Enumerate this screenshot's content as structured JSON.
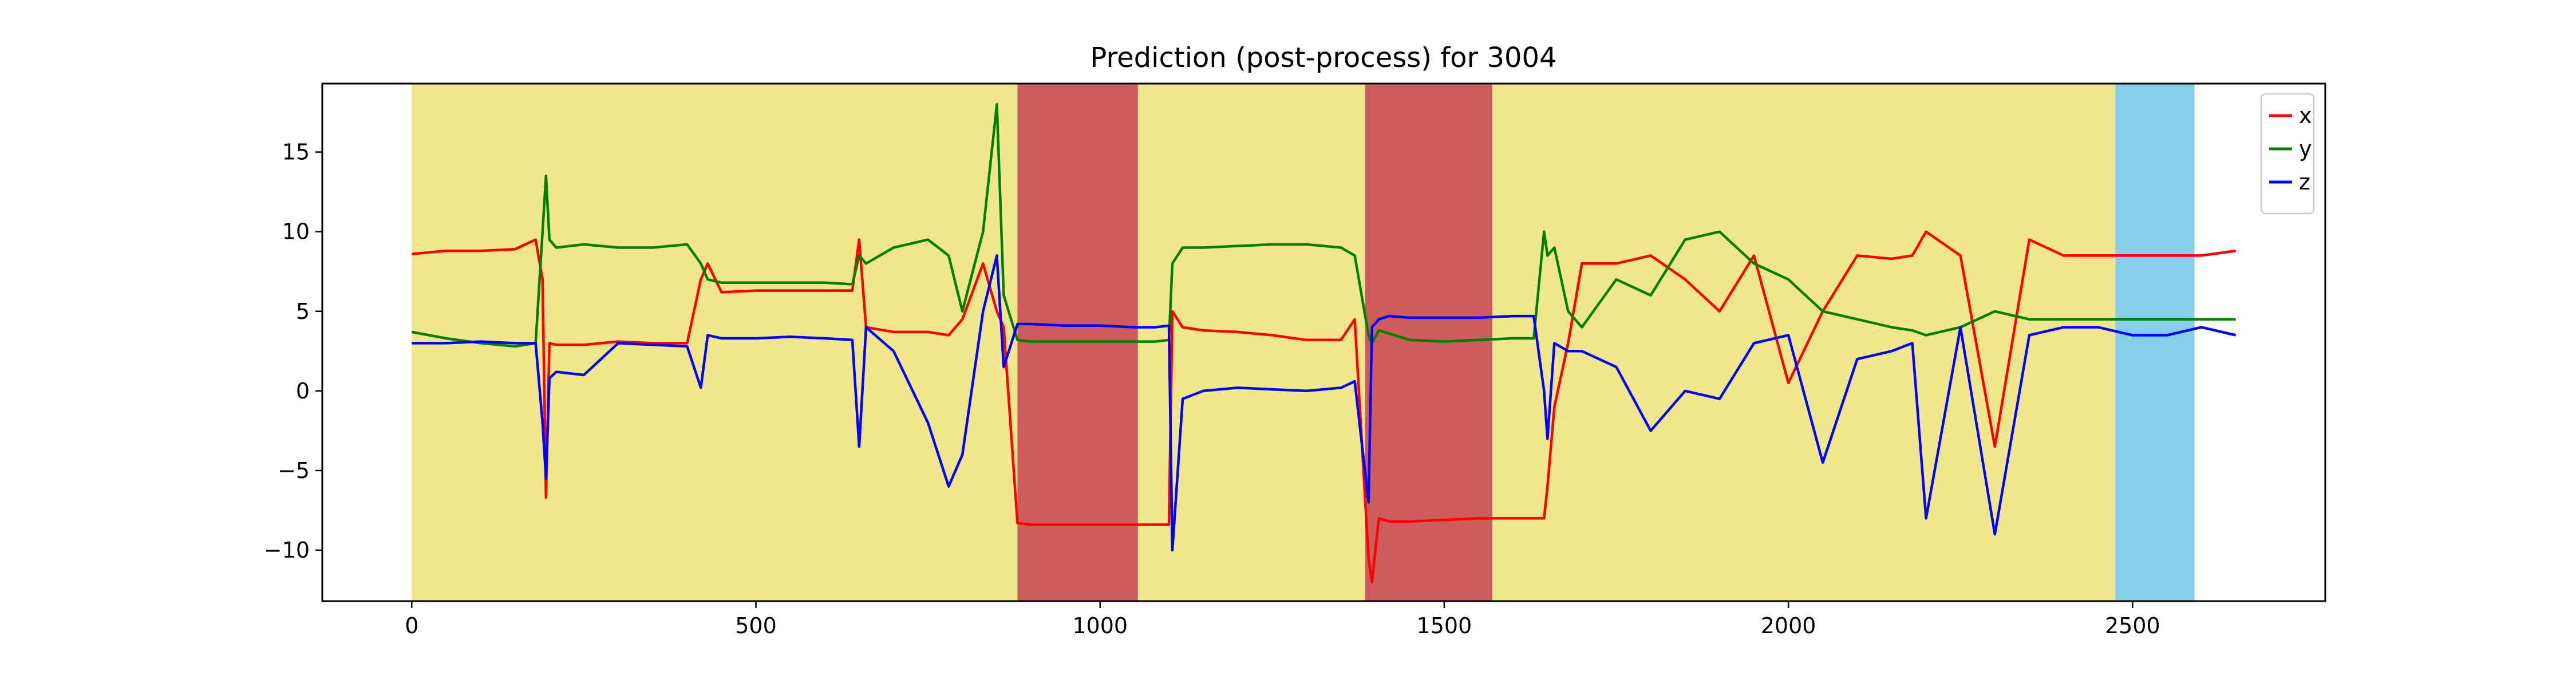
{
  "chart_data": {
    "type": "line",
    "title": "Prediction (post-process) for 3004",
    "xlabel": "",
    "ylabel": "",
    "xlim": [
      -130,
      2780
    ],
    "ylim": [
      -13.2,
      19.3
    ],
    "x_ticks": [
      0,
      500,
      1000,
      1500,
      2000,
      2500
    ],
    "y_ticks": [
      -10,
      -5,
      0,
      5,
      10,
      15
    ],
    "grid": false,
    "legend_position": "top-right",
    "background_bands": [
      {
        "x0": 0,
        "x1": 880,
        "color": "#f0e68c"
      },
      {
        "x0": 880,
        "x1": 1055,
        "color": "#cd5c5c"
      },
      {
        "x0": 1055,
        "x1": 1385,
        "color": "#f0e68c"
      },
      {
        "x0": 1385,
        "x1": 1570,
        "color": "#cd5c5c"
      },
      {
        "x0": 1570,
        "x1": 2475,
        "color": "#f0e68c"
      },
      {
        "x0": 2475,
        "x1": 2590,
        "color": "#87ceeb"
      }
    ],
    "x": [
      0,
      50,
      100,
      150,
      180,
      190,
      195,
      200,
      210,
      250,
      300,
      350,
      400,
      420,
      430,
      450,
      500,
      550,
      600,
      640,
      650,
      660,
      700,
      750,
      780,
      800,
      830,
      850,
      860,
      880,
      900,
      950,
      1000,
      1050,
      1080,
      1100,
      1105,
      1120,
      1150,
      1200,
      1250,
      1300,
      1350,
      1370,
      1390,
      1395,
      1405,
      1420,
      1450,
      1500,
      1550,
      1600,
      1630,
      1645,
      1650,
      1660,
      1680,
      1700,
      1750,
      1800,
      1850,
      1900,
      1950,
      2000,
      2050,
      2100,
      2150,
      2180,
      2200,
      2250,
      2300,
      2350,
      2400,
      2450,
      2500,
      2550,
      2600,
      2650
    ],
    "series": [
      {
        "name": "x",
        "color": "#ff0000",
        "values": [
          8.6,
          8.8,
          8.8,
          8.9,
          9.5,
          7.0,
          -6.7,
          3.0,
          2.9,
          2.9,
          3.1,
          3.0,
          3.0,
          7.0,
          8.0,
          6.2,
          6.3,
          6.3,
          6.3,
          6.3,
          9.5,
          4.0,
          3.7,
          3.7,
          3.5,
          4.5,
          8.0,
          5.0,
          4.0,
          -8.3,
          -8.4,
          -8.4,
          -8.4,
          -8.4,
          -8.4,
          -8.4,
          5.0,
          4.0,
          3.8,
          3.7,
          3.5,
          3.2,
          3.2,
          4.5,
          -10.5,
          -12.0,
          -8.0,
          -8.2,
          -8.2,
          -8.1,
          -8.0,
          -8.0,
          -8.0,
          -8.0,
          -6.0,
          -1.0,
          3.0,
          8.0,
          8.0,
          8.5,
          7.0,
          5.0,
          8.5,
          0.5,
          5.0,
          8.5,
          8.3,
          8.5,
          10.0,
          8.5,
          -3.5,
          9.5,
          8.5,
          8.5,
          8.5,
          8.5,
          8.5,
          8.8
        ]
      },
      {
        "name": "y",
        "color": "#008000",
        "values": [
          3.7,
          3.3,
          3.0,
          2.8,
          3.0,
          10.0,
          13.5,
          9.5,
          9.0,
          9.2,
          9.0,
          9.0,
          9.2,
          8.0,
          7.0,
          6.8,
          6.8,
          6.8,
          6.8,
          6.7,
          8.5,
          8.0,
          9.0,
          9.5,
          8.5,
          5.0,
          10.0,
          18.0,
          6.0,
          3.2,
          3.1,
          3.1,
          3.1,
          3.1,
          3.1,
          3.2,
          8.0,
          9.0,
          9.0,
          9.1,
          9.2,
          9.2,
          9.0,
          8.5,
          3.5,
          3.0,
          3.8,
          3.6,
          3.2,
          3.1,
          3.2,
          3.3,
          3.3,
          10.0,
          8.5,
          9.0,
          5.0,
          4.0,
          7.0,
          6.0,
          9.5,
          10.0,
          8.0,
          7.0,
          5.0,
          4.5,
          4.0,
          3.8,
          3.5,
          4.0,
          5.0,
          4.5,
          4.5,
          4.5,
          4.5,
          4.5,
          4.5,
          4.5
        ]
      },
      {
        "name": "z",
        "color": "#0000ff",
        "values": [
          3.0,
          3.0,
          3.1,
          3.0,
          3.0,
          -2.0,
          -5.5,
          0.8,
          1.2,
          1.0,
          3.0,
          2.9,
          2.8,
          0.2,
          3.5,
          3.3,
          3.3,
          3.4,
          3.3,
          3.2,
          -3.5,
          4.0,
          2.5,
          -2.0,
          -6.0,
          -4.0,
          5.0,
          8.5,
          1.5,
          4.2,
          4.2,
          4.1,
          4.1,
          4.0,
          4.0,
          4.1,
          -10.0,
          -0.5,
          0.0,
          0.2,
          0.1,
          0.0,
          0.2,
          0.6,
          -7.0,
          4.0,
          4.5,
          4.7,
          4.6,
          4.6,
          4.6,
          4.7,
          4.7,
          0.0,
          -3.0,
          3.0,
          2.5,
          2.5,
          1.5,
          -2.5,
          0.0,
          -0.5,
          3.0,
          3.5,
          -4.5,
          2.0,
          2.5,
          3.0,
          -8.0,
          4.0,
          -9.0,
          3.5,
          4.0,
          4.0,
          3.5,
          3.5,
          4.0,
          3.5
        ]
      }
    ]
  }
}
